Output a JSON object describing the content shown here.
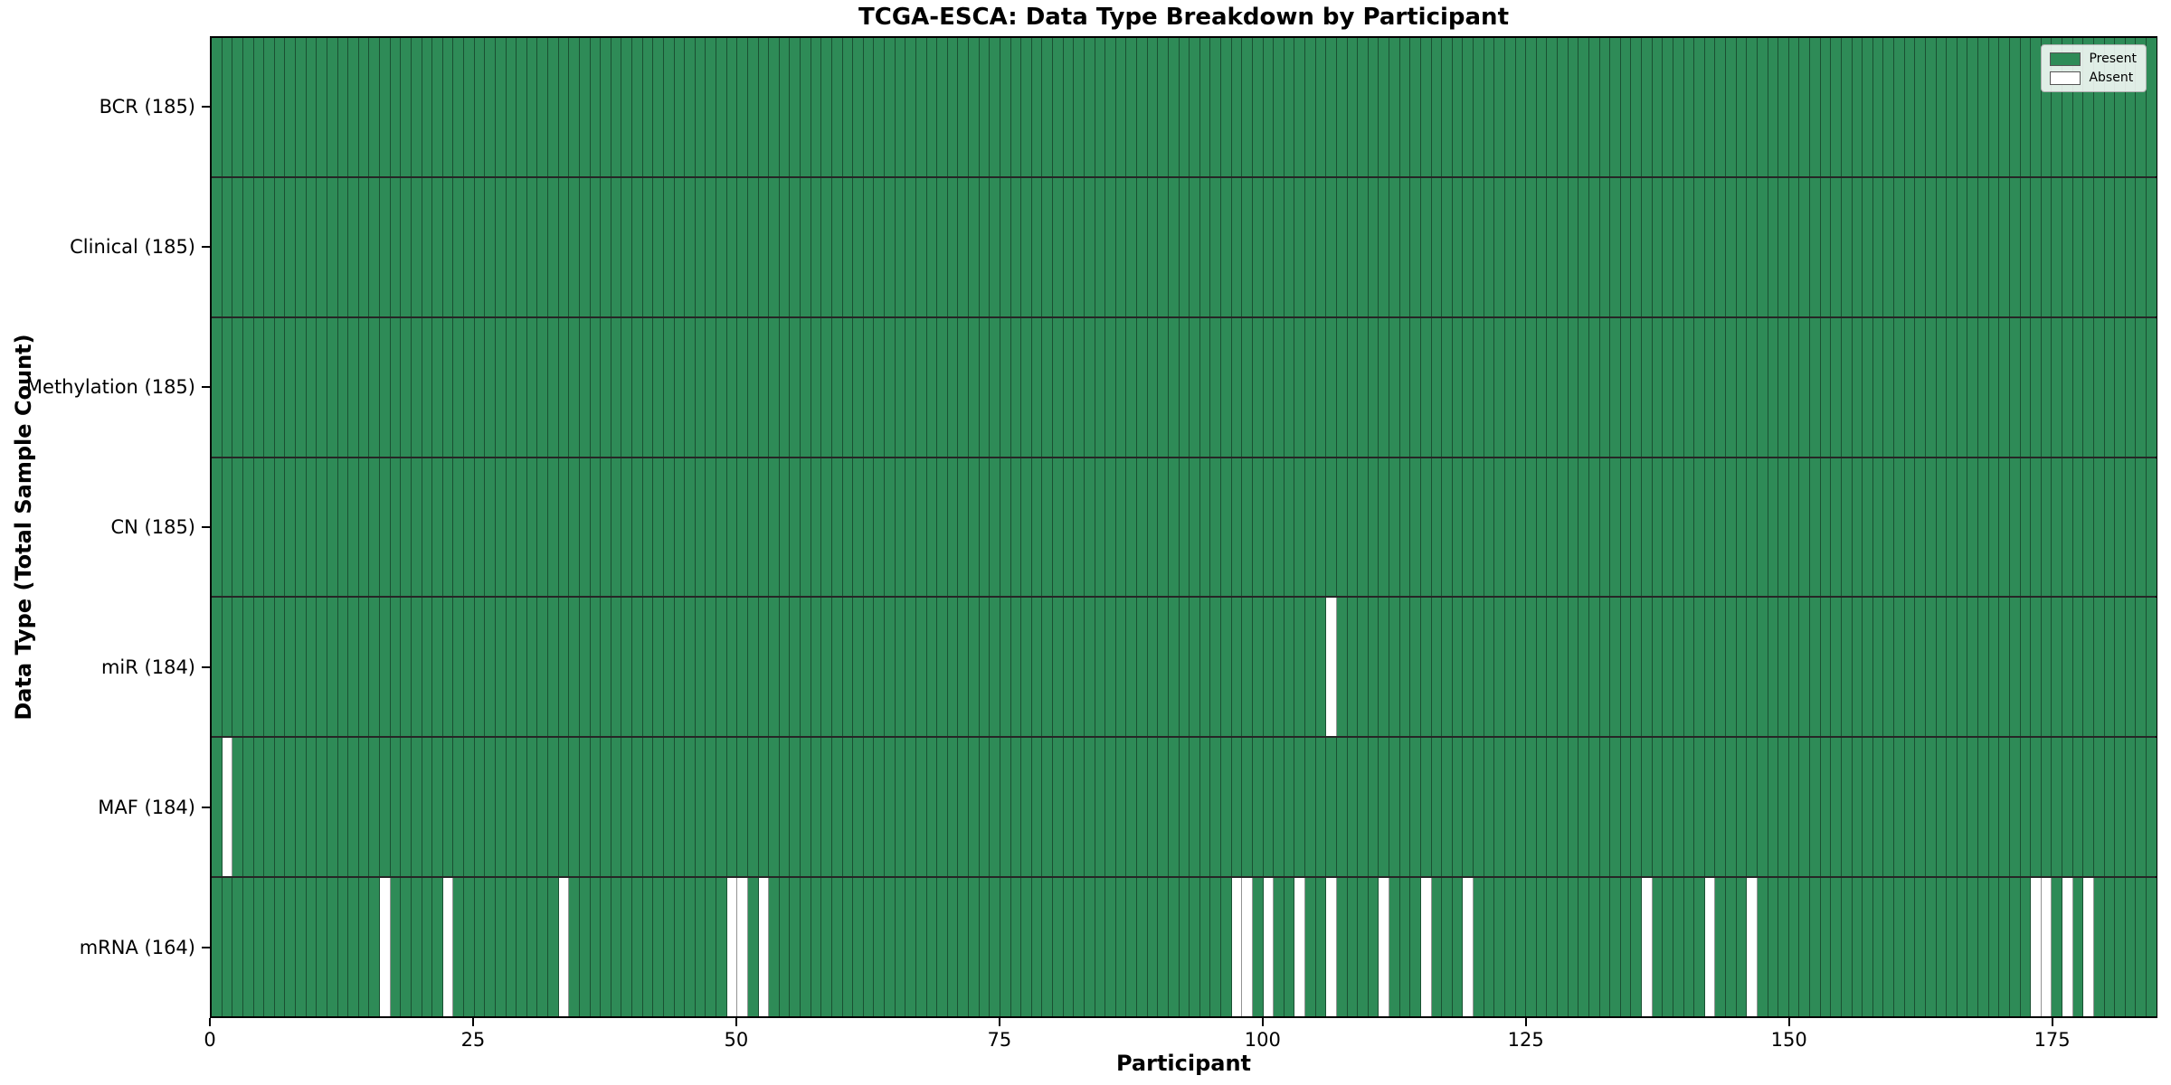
{
  "chart_data": {
    "type": "heatmap",
    "title": "TCGA-ESCA: Data Type Breakdown by Participant",
    "xlabel": "Participant",
    "ylabel": "Data Type (Total Sample Count)",
    "n_participants": 185,
    "x_ticks": [
      0,
      25,
      50,
      75,
      100,
      125,
      150,
      175
    ],
    "x_range": [
      0,
      185
    ],
    "grid": true,
    "legend_position": "upper right",
    "colors": {
      "present": "#2e8b57",
      "absent": "#ffffff",
      "cell_edge": "rgba(0,0,0,0.42)"
    },
    "legend": [
      {
        "key": "present",
        "label": "Present",
        "color": "#2e8b57"
      },
      {
        "key": "absent",
        "label": "Absent",
        "color": "#ffffff"
      }
    ],
    "rows": [
      {
        "name": "BCR",
        "label": "BCR (185)",
        "total": 185,
        "absent_participants": []
      },
      {
        "name": "Clinical",
        "label": "Clinical (185)",
        "total": 185,
        "absent_participants": []
      },
      {
        "name": "Methylation",
        "label": "Methylation (185)",
        "total": 185,
        "absent_participants": []
      },
      {
        "name": "CN",
        "label": "CN (185)",
        "total": 185,
        "absent_participants": []
      },
      {
        "name": "miR",
        "label": "miR (184)",
        "total": 184,
        "absent_participants": [
          106
        ]
      },
      {
        "name": "MAF",
        "label": "MAF (184)",
        "total": 184,
        "absent_participants": [
          1
        ]
      },
      {
        "name": "mRNA",
        "label": "mRNA (164)",
        "total": 164,
        "absent_participants": [
          16,
          22,
          33,
          49,
          50,
          52,
          97,
          98,
          100,
          103,
          106,
          111,
          115,
          119,
          136,
          142,
          146,
          173,
          174,
          176,
          178
        ]
      }
    ]
  }
}
